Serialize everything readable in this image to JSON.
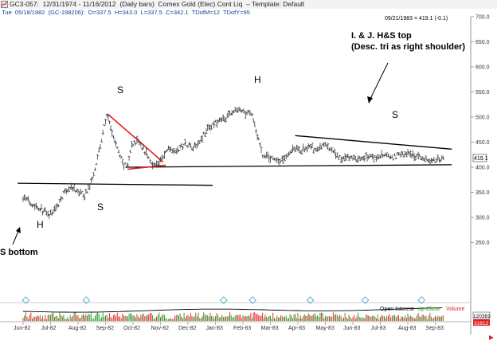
{
  "window": {
    "title_prefix": "GC3-057:",
    "date_range": "12/31/1974 - 11/16/2012",
    "instrument": "(Daily bars)",
    "contract": "Comex Gold (Elec) Cont Liq",
    "template": "– Template: Default"
  },
  "info_bar": {
    "day": "Tue",
    "date": "05/18/1982",
    "code": "(GC-198206):",
    "open": "O=337.5",
    "high": "H=343.0",
    "low": "L=337.5",
    "close": "C=342.1",
    "tdoi": "TDofM=12",
    "tdoy": "TDofY=95"
  },
  "last_readout": "09/21/1983 = 419.1 (-0.1)",
  "last_price_tag": "419.1",
  "annotations": {
    "hs_top_line1": "I. & J.  H&S top",
    "hs_top_line2": "(Desc. tri as right shoulder)",
    "left_s1": "S",
    "head_bottom_h": "H",
    "right_s_bottom": "S",
    "s_bottom": "S bottom",
    "top_left_s": "S",
    "top_head": "H",
    "top_right_s": "S"
  },
  "lower_panel": {
    "open_interest": "Open Interest",
    "up_close": "Up Close",
    "volume": "Volume",
    "oi_value": "120381",
    "vol_value": "31612"
  },
  "colors": {
    "bar": "#3a3a3a",
    "trendline": "#000000",
    "red_line": "#e02020",
    "up_close": "#1a9a1a",
    "volume": "#e02020",
    "marker": "#3aa0c8",
    "axis": "#666666"
  },
  "chart_data": {
    "type": "ohlc",
    "title": "Comex Gold (Elec) Cont Liq",
    "ylim": [
      250,
      700
    ],
    "y_ticks": [
      250,
      300,
      350,
      400,
      450,
      500,
      550,
      600,
      650,
      700
    ],
    "y_tick_labels": [
      "250.0",
      "300.0",
      "350.0",
      "400.0",
      "450.0",
      "500.0",
      "550.0",
      "600.0",
      "650.0",
      "700.0"
    ],
    "x_labels": [
      "Jun-82",
      "Jul-82",
      "Aug-82",
      "Sep-82",
      "Oct-82",
      "Nov-82",
      "Dec-82",
      "Jan-83",
      "Feb-83",
      "Mar-83",
      "Apr-83",
      "May-83",
      "Jun-83",
      "Jul-83",
      "Aug-83",
      "Sep-83"
    ],
    "price_path": [
      {
        "m": 0.0,
        "p": 340
      },
      {
        "m": 0.4,
        "p": 325
      },
      {
        "m": 0.7,
        "p": 315
      },
      {
        "m": 0.95,
        "p": 303
      },
      {
        "m": 1.2,
        "p": 318
      },
      {
        "m": 1.45,
        "p": 345
      },
      {
        "m": 1.7,
        "p": 360
      },
      {
        "m": 2.0,
        "p": 350
      },
      {
        "m": 2.25,
        "p": 345
      },
      {
        "m": 2.45,
        "p": 365
      },
      {
        "m": 2.6,
        "p": 395
      },
      {
        "m": 2.8,
        "p": 440
      },
      {
        "m": 2.95,
        "p": 480
      },
      {
        "m": 3.05,
        "p": 505
      },
      {
        "m": 3.25,
        "p": 465
      },
      {
        "m": 3.45,
        "p": 435
      },
      {
        "m": 3.65,
        "p": 405
      },
      {
        "m": 3.8,
        "p": 400
      },
      {
        "m": 3.95,
        "p": 445
      },
      {
        "m": 4.2,
        "p": 455
      },
      {
        "m": 4.45,
        "p": 430
      },
      {
        "m": 4.65,
        "p": 410
      },
      {
        "m": 4.85,
        "p": 405
      },
      {
        "m": 5.1,
        "p": 420
      },
      {
        "m": 5.3,
        "p": 440
      },
      {
        "m": 5.6,
        "p": 432
      },
      {
        "m": 5.9,
        "p": 448
      },
      {
        "m": 6.2,
        "p": 440
      },
      {
        "m": 6.45,
        "p": 455
      },
      {
        "m": 6.75,
        "p": 478
      },
      {
        "m": 7.05,
        "p": 490
      },
      {
        "m": 7.35,
        "p": 498
      },
      {
        "m": 7.6,
        "p": 508
      },
      {
        "m": 7.85,
        "p": 516
      },
      {
        "m": 8.1,
        "p": 505
      },
      {
        "m": 8.3,
        "p": 512
      },
      {
        "m": 8.5,
        "p": 470
      },
      {
        "m": 8.7,
        "p": 425
      },
      {
        "m": 8.9,
        "p": 420
      },
      {
        "m": 9.1,
        "p": 418
      },
      {
        "m": 9.35,
        "p": 410
      },
      {
        "m": 9.6,
        "p": 425
      },
      {
        "m": 9.85,
        "p": 440
      },
      {
        "m": 10.1,
        "p": 432
      },
      {
        "m": 10.4,
        "p": 440
      },
      {
        "m": 10.7,
        "p": 435
      },
      {
        "m": 11.0,
        "p": 445
      },
      {
        "m": 11.3,
        "p": 428
      },
      {
        "m": 11.6,
        "p": 416
      },
      {
        "m": 11.9,
        "p": 420
      },
      {
        "m": 12.2,
        "p": 415
      },
      {
        "m": 12.5,
        "p": 422
      },
      {
        "m": 12.8,
        "p": 418
      },
      {
        "m": 13.1,
        "p": 425
      },
      {
        "m": 13.4,
        "p": 418
      },
      {
        "m": 13.7,
        "p": 424
      },
      {
        "m": 14.0,
        "p": 428
      },
      {
        "m": 14.3,
        "p": 422
      },
      {
        "m": 14.6,
        "p": 418
      },
      {
        "m": 14.9,
        "p": 412
      },
      {
        "m": 15.1,
        "p": 415
      },
      {
        "m": 15.3,
        "p": 419
      }
    ],
    "trendlines": [
      {
        "name": "neckline-bottom",
        "color": "black",
        "from": {
          "m": -0.2,
          "p": 368
        },
        "to": {
          "m": 6.9,
          "p": 364
        }
      },
      {
        "name": "neckline-top",
        "color": "black",
        "from": {
          "m": 3.75,
          "p": 400
        },
        "to": {
          "m": 15.6,
          "p": 405
        }
      },
      {
        "name": "triangle-upper",
        "color": "black",
        "from": {
          "m": 9.9,
          "p": 463
        },
        "to": {
          "m": 15.6,
          "p": 436
        }
      },
      {
        "name": "red-downtrend",
        "color": "red",
        "from": {
          "m": 3.1,
          "p": 505
        },
        "to": {
          "m": 5.1,
          "p": 410
        }
      },
      {
        "name": "red-support",
        "color": "red",
        "from": {
          "m": 3.8,
          "p": 396
        },
        "to": {
          "m": 5.2,
          "p": 404
        }
      }
    ]
  }
}
